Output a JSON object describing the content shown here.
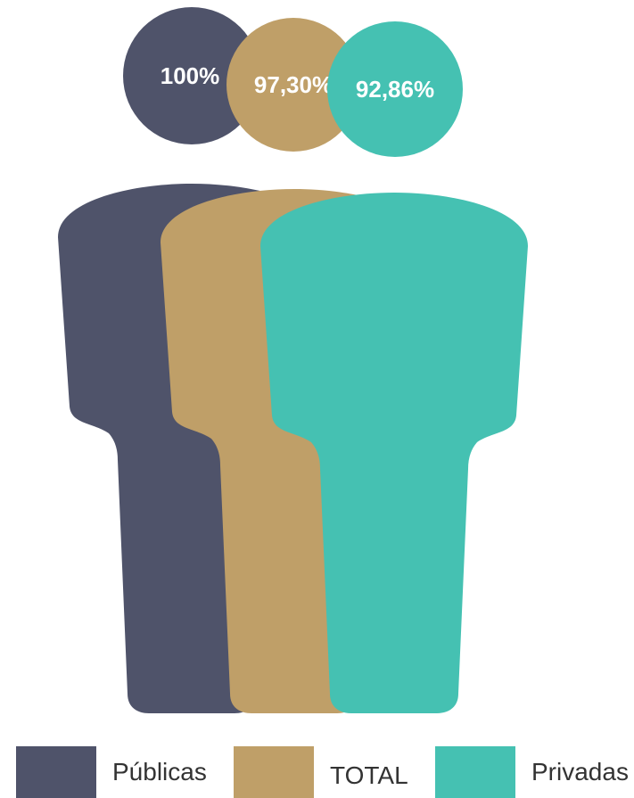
{
  "chart_data": {
    "type": "pictograph",
    "unit": "%",
    "series": [
      {
        "name": "Públicas",
        "value": 100,
        "label": "100%",
        "color": "#4f536a"
      },
      {
        "name": "TOTAL",
        "value": 97.3,
        "label": "97,30%",
        "color": "#bf9f68"
      },
      {
        "name": "Privadas",
        "value": 92.86,
        "label": "92,86%",
        "color": "#45c1b2"
      }
    ],
    "legend": {
      "placement": "bottom",
      "entries": [
        "Públicas",
        "TOTAL",
        "Privadas"
      ]
    }
  }
}
